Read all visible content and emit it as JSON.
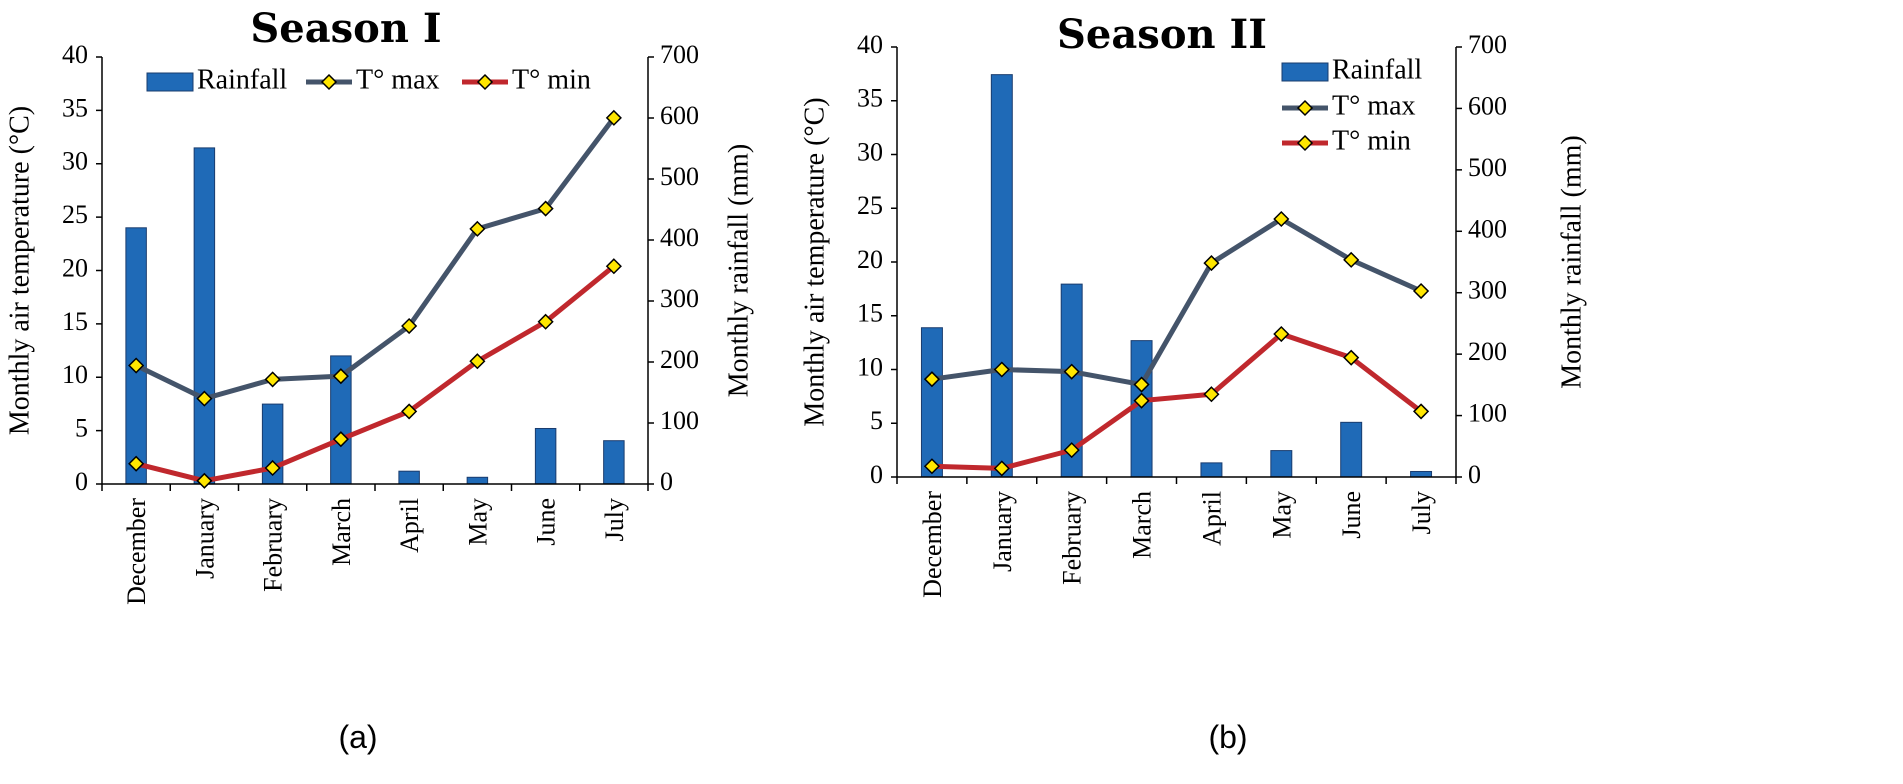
{
  "chart_data": [
    {
      "type": "bar+line",
      "title": "Season I",
      "caption": "(a)",
      "categories": [
        "December",
        "January",
        "February",
        "March",
        "April",
        "May",
        "June",
        "July"
      ],
      "ylabel_left": "Monthly air temperature (°C)",
      "ylabel_right": "Monthly rainfall (mm)",
      "ylim_left": [
        0,
        40
      ],
      "ylim_right": [
        0,
        700
      ],
      "yticks_left": [
        "0",
        "5",
        "10",
        "15",
        "20",
        "25",
        "30",
        "35",
        "40"
      ],
      "yticks_right": [
        "0",
        "100",
        "200",
        "300",
        "400",
        "500",
        "600",
        "700"
      ],
      "legend": [
        "Rainfall",
        "T° max",
        "T° min"
      ],
      "legend_position": "top",
      "series": [
        {
          "name": "Rainfall",
          "kind": "bar",
          "axis": "right",
          "color": "#1f6ab7",
          "values": [
            420,
            551,
            131,
            210,
            21,
            11,
            91,
            71
          ]
        },
        {
          "name": "T° max",
          "kind": "line",
          "axis": "left",
          "color": "#44546a",
          "values": [
            11.1,
            8.0,
            9.8,
            10.1,
            14.8,
            23.9,
            25.8,
            34.3
          ]
        },
        {
          "name": "T° min",
          "kind": "line",
          "axis": "left",
          "color": "#c0282d",
          "values": [
            1.9,
            0.3,
            1.5,
            4.2,
            6.8,
            11.5,
            15.2,
            20.4
          ]
        }
      ],
      "marker_color": "#ffe600"
    },
    {
      "type": "bar+line",
      "title": "Season II",
      "caption": "(b)",
      "categories": [
        "December",
        "January",
        "February",
        "March",
        "April",
        "May",
        "June",
        "July"
      ],
      "ylabel_left": "Monthly air temperature (°C)",
      "ylabel_right": "Monthly rainfall (mm)",
      "ylim_left": [
        0,
        40
      ],
      "ylim_right": [
        0,
        700
      ],
      "yticks_left": [
        "0",
        "5",
        "10",
        "15",
        "20",
        "25",
        "30",
        "35",
        "40"
      ],
      "yticks_right": [
        "0",
        "100",
        "200",
        "300",
        "400",
        "500",
        "600",
        "700"
      ],
      "legend": [
        "Rainfall",
        "T° max",
        "T° min"
      ],
      "legend_position": "top-right",
      "series": [
        {
          "name": "Rainfall",
          "kind": "bar",
          "axis": "right",
          "color": "#1f6ab7",
          "values": [
            243,
            655,
            314,
            222,
            23,
            43,
            89,
            9
          ]
        },
        {
          "name": "T° max",
          "kind": "line",
          "axis": "left",
          "color": "#44546a",
          "values": [
            9.1,
            10.0,
            9.8,
            8.6,
            19.9,
            24.0,
            20.2,
            17.3
          ]
        },
        {
          "name": "T° min",
          "kind": "line",
          "axis": "left",
          "color": "#c0282d",
          "values": [
            1.0,
            0.8,
            2.5,
            7.1,
            7.7,
            13.3,
            11.1,
            6.1
          ]
        }
      ],
      "marker_color": "#ffe600"
    }
  ]
}
